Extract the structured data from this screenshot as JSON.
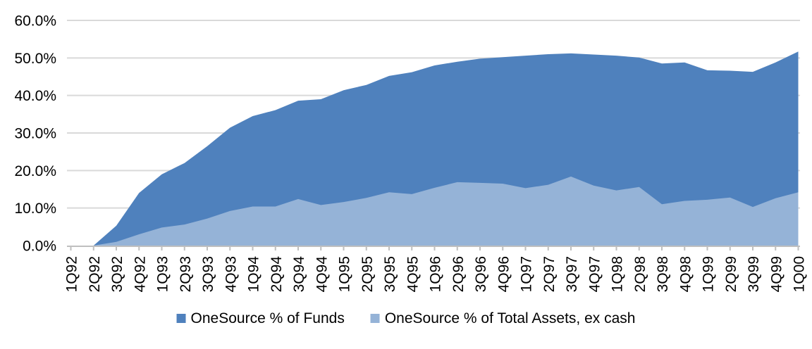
{
  "chart_data": {
    "type": "area",
    "title": "",
    "xlabel": "",
    "ylabel": "",
    "ylim": [
      0,
      60
    ],
    "y_tick_step": 10,
    "y_tick_labels": [
      "0.0%",
      "10.0%",
      "20.0%",
      "30.0%",
      "40.0%",
      "50.0%",
      "60.0%"
    ],
    "grid": true,
    "legend_position": "bottom",
    "overlap_mode": "overlaid (not stacked), smaller series drawn in front",
    "categories": [
      "1Q92",
      "2Q92",
      "3Q92",
      "4Q92",
      "1Q93",
      "2Q93",
      "3Q93",
      "4Q93",
      "1Q94",
      "2Q94",
      "3Q94",
      "4Q94",
      "1Q95",
      "2Q95",
      "3Q95",
      "4Q95",
      "1Q96",
      "2Q96",
      "3Q96",
      "4Q96",
      "1Q97",
      "2Q97",
      "3Q97",
      "4Q97",
      "1Q98",
      "2Q98",
      "3Q98",
      "4Q98",
      "1Q99",
      "2Q99",
      "3Q99",
      "4Q99",
      "1Q00"
    ],
    "series": [
      {
        "name": "OneSource % of Funds",
        "color": "#4F81BD",
        "values": [
          0,
          0,
          5.3,
          14.0,
          19.0,
          22.0,
          26.5,
          31.4,
          34.5,
          36.1,
          38.6,
          39.0,
          41.4,
          42.8,
          45.2,
          46.2,
          48.0,
          49.0,
          49.8,
          50.2,
          50.6,
          51.0,
          51.2,
          50.9,
          50.6,
          50.1,
          48.5,
          48.8,
          46.7,
          46.6,
          46.3,
          48.8,
          51.7
        ]
      },
      {
        "name": "OneSource % of Total Assets, ex cash",
        "color": "#95B3D7",
        "values": [
          0,
          0,
          1.0,
          3.0,
          4.8,
          5.6,
          7.2,
          9.2,
          10.4,
          10.4,
          12.4,
          10.8,
          11.6,
          12.7,
          14.2,
          13.7,
          15.4,
          16.9,
          16.7,
          16.5,
          15.3,
          16.2,
          18.4,
          16.0,
          14.7,
          15.6,
          11.0,
          11.9,
          12.2,
          12.8,
          10.3,
          12.6,
          14.2
        ]
      }
    ],
    "colors": {
      "gridline": "#D9D9D9",
      "axis_line": "#BFBFBF",
      "tick": "#BFBFBF",
      "label_text": "#000000",
      "background": "#FFFFFF"
    }
  }
}
